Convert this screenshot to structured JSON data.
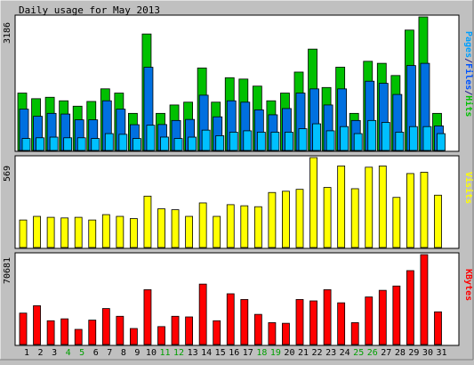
{
  "chart_data": [
    {
      "type": "bar",
      "panel": "hits-files-pages",
      "title": "Daily usage for May 2013",
      "ylabel_parts": [
        {
          "text": "Pages",
          "color": "#00a0ff"
        },
        {
          "text": "/",
          "color": "#1f1f8f"
        },
        {
          "text": "Files",
          "color": "#0055ff"
        },
        {
          "text": "/",
          "color": "#1f1f8f"
        },
        {
          "text": "Hits",
          "color": "#00c000"
        }
      ],
      "ymax_label": "3186",
      "ylim": [
        0,
        3186
      ],
      "categories": [
        "1",
        "2",
        "3",
        "4",
        "5",
        "6",
        "7",
        "8",
        "9",
        "10",
        "11",
        "12",
        "13",
        "14",
        "15",
        "16",
        "17",
        "18",
        "19",
        "20",
        "21",
        "22",
        "23",
        "24",
        "25",
        "26",
        "27",
        "28",
        "29",
        "30",
        "31"
      ],
      "weekend_days": [
        "4",
        "5",
        "11",
        "12",
        "18",
        "19",
        "25",
        "26"
      ],
      "series": [
        {
          "name": "Hits",
          "color": "#00c000",
          "values": [
            1369,
            1235,
            1269,
            1185,
            1056,
            1169,
            1470,
            1369,
            885,
            2779,
            885,
            1085,
            1152,
            1968,
            1152,
            1736,
            1703,
            1535,
            1185,
            1369,
            1870,
            2418,
            1502,
            1987,
            885,
            2127,
            2079,
            1788,
            2872,
            3186,
            885
          ]
        },
        {
          "name": "Files",
          "color": "#0070e0",
          "values": [
            985,
            815,
            885,
            869,
            731,
            731,
            1185,
            985,
            615,
            1985,
            619,
            715,
            740,
            1319,
            802,
            1185,
            1152,
            969,
            851,
            1000,
            1369,
            1469,
            1085,
            1469,
            715,
            1652,
            1602,
            1336,
            2026,
            2079,
            585
          ]
        },
        {
          "name": "Pages",
          "color": "#00c0ff",
          "values": [
            285,
            302,
            318,
            302,
            302,
            285,
            402,
            385,
            285,
            602,
            319,
            285,
            318,
            485,
            352,
            436,
            469,
            436,
            436,
            436,
            518,
            636,
            469,
            569,
            402,
            715,
            669,
            436,
            569,
            569,
            402
          ]
        }
      ]
    },
    {
      "type": "bar",
      "panel": "visits",
      "ylabel": "Visits",
      "ylabel_color": "#ffff00",
      "ymax_label": "569",
      "ylim": [
        0,
        569
      ],
      "categories": [
        "1",
        "2",
        "3",
        "4",
        "5",
        "6",
        "7",
        "8",
        "9",
        "10",
        "11",
        "12",
        "13",
        "14",
        "15",
        "16",
        "17",
        "18",
        "19",
        "20",
        "21",
        "22",
        "23",
        "24",
        "25",
        "26",
        "27",
        "28",
        "29",
        "30",
        "31"
      ],
      "series": [
        {
          "name": "Visits",
          "color": "#ffff00",
          "values": [
            174,
            197,
            191,
            187,
            191,
            174,
            208,
            197,
            183,
            325,
            245,
            239,
            197,
            282,
            197,
            271,
            264,
            258,
            348,
            356,
            368,
            569,
            380,
            516,
            372,
            508,
            516,
            317,
            468,
            476,
            331
          ]
        }
      ]
    },
    {
      "type": "bar",
      "panel": "kbytes",
      "ylabel": "KBytes",
      "ylabel_color": "#ff0000",
      "ymax_label": "70681",
      "ylim": [
        0,
        70681
      ],
      "categories": [
        "1",
        "2",
        "3",
        "4",
        "5",
        "6",
        "7",
        "8",
        "9",
        "10",
        "11",
        "12",
        "13",
        "14",
        "15",
        "16",
        "17",
        "18",
        "19",
        "20",
        "21",
        "22",
        "23",
        "24",
        "25",
        "26",
        "27",
        "28",
        "29",
        "30",
        "31"
      ],
      "series": [
        {
          "name": "KBytes",
          "color": "#ff0000",
          "values": [
            24700,
            30500,
            18700,
            20200,
            11900,
            19200,
            28300,
            22200,
            12600,
            43100,
            14100,
            22200,
            21700,
            47500,
            18700,
            39900,
            35400,
            23700,
            17200,
            16700,
            35400,
            34300,
            43100,
            32800,
            17200,
            37400,
            42600,
            46000,
            58100,
            70681,
            25700
          ]
        }
      ]
    }
  ]
}
